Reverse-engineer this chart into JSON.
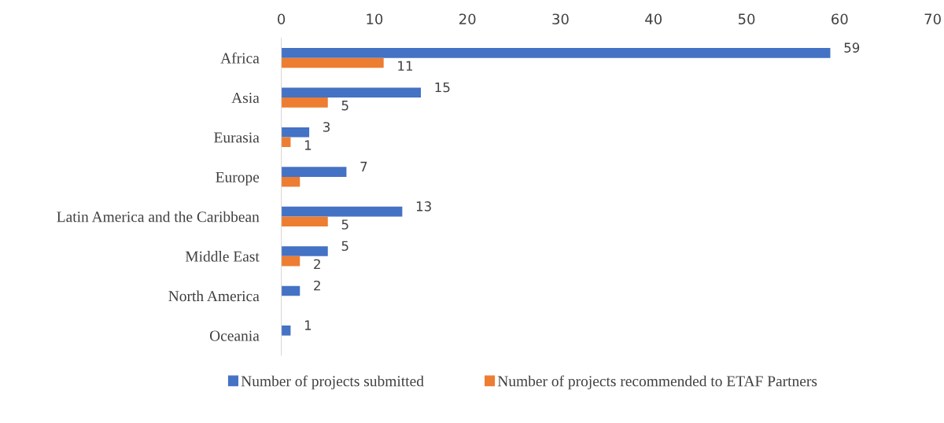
{
  "chart_data": {
    "type": "bar",
    "orientation": "horizontal",
    "categories": [
      "Africa",
      "Asia",
      "Eurasia",
      "Europe",
      "Latin America and the Caribbean",
      "Middle East",
      "North America",
      "Oceania"
    ],
    "series": [
      {
        "name": "Number of projects submitted",
        "color": "#4472c4",
        "values": [
          59,
          15,
          3,
          7,
          13,
          5,
          2,
          1
        ],
        "value_labels": [
          "59",
          "15",
          "3",
          "7",
          "13",
          "5",
          "2",
          "1"
        ]
      },
      {
        "name": "Number of projects recommended to ETAF Partners",
        "color": "#ed7d31",
        "values": [
          11,
          5,
          1,
          2,
          5,
          2,
          null,
          null
        ],
        "value_labels": [
          "11",
          "5",
          "1",
          null,
          "5",
          "2",
          null,
          null
        ]
      }
    ],
    "xlim": [
      0,
      70
    ],
    "xticks": [
      0,
      10,
      20,
      30,
      40,
      50,
      60,
      70
    ],
    "grid": false,
    "legend": "bottom"
  }
}
